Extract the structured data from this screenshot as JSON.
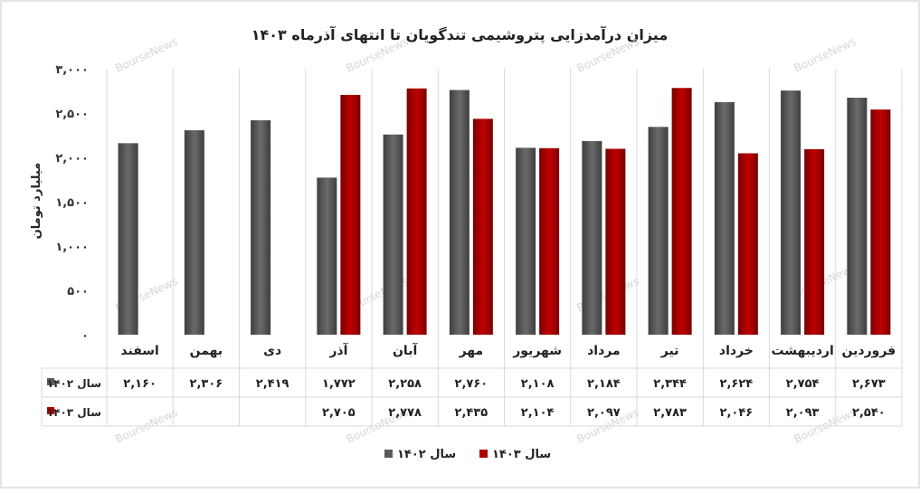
{
  "chart_data": {
    "type": "bar",
    "title": "میزان درآمدزایی پتروشیمی تندگویان تا انتهای آذرماه ۱۴۰۳",
    "ylabel": "میلیارد تومان",
    "xlabel": "",
    "ylim": [
      0,
      3000
    ],
    "y_ticks": [
      0,
      500,
      1000,
      1500,
      2000,
      2500,
      3000
    ],
    "y_tick_labels": [
      "۰",
      "۵۰۰",
      "۱,۰۰۰",
      "۱,۵۰۰",
      "۲,۰۰۰",
      "۲,۵۰۰",
      "۳,۰۰۰"
    ],
    "grid": "vertical category separators",
    "legend_position": "bottom-center",
    "categories": [
      "فروردین",
      "اردیبهشت",
      "خرداد",
      "تیر",
      "مرداد",
      "شهریور",
      "مهر",
      "آبان",
      "آذر",
      "دی",
      "بهمن",
      "اسفند"
    ],
    "category_order": "right-to-left",
    "series": [
      {
        "name": "سال ۱۴۰۲",
        "color": "#5a5a5a",
        "values": [
          2673,
          2754,
          2624,
          2344,
          2184,
          2108,
          2760,
          2258,
          1772,
          2419,
          2306,
          2160
        ],
        "labels": [
          "۲,۶۷۳",
          "۲,۷۵۴",
          "۲,۶۲۴",
          "۲,۳۴۴",
          "۲,۱۸۴",
          "۲,۱۰۸",
          "۲,۷۶۰",
          "۲,۲۵۸",
          "۱,۷۷۲",
          "۲,۴۱۹",
          "۲,۳۰۶",
          "۲,۱۶۰"
        ]
      },
      {
        "name": "سال ۱۴۰۳",
        "color": "#b00000",
        "values": [
          2540,
          2093,
          2046,
          2783,
          2097,
          2104,
          2435,
          2778,
          2705,
          null,
          null,
          null
        ],
        "labels": [
          "۲,۵۴۰",
          "۲,۰۹۳",
          "۲,۰۴۶",
          "۲,۷۸۳",
          "۲,۰۹۷",
          "۲,۱۰۴",
          "۲,۴۳۵",
          "۲,۷۷۸",
          "۲,۷۰۵",
          "",
          "",
          ""
        ]
      }
    ]
  },
  "watermark": "BourseNews"
}
